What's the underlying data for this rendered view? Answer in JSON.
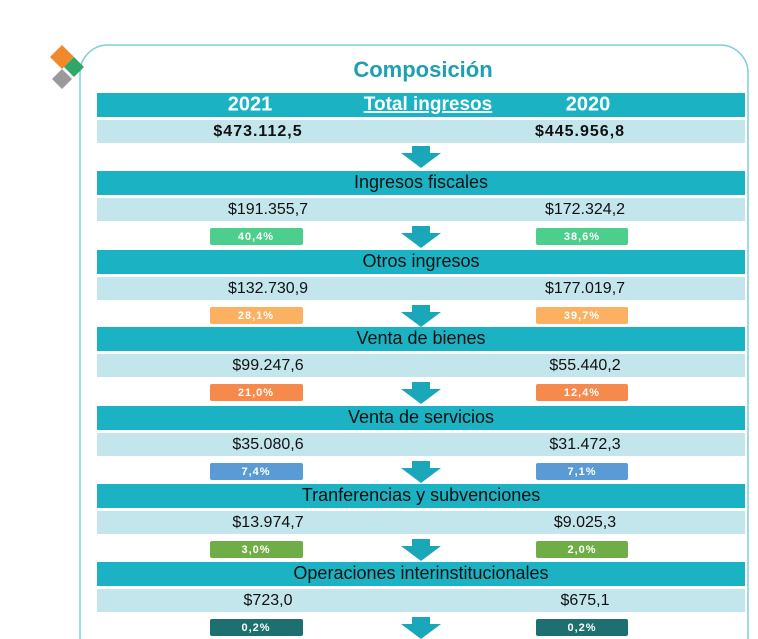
{
  "title": "Composición",
  "header": {
    "year_left": "2021",
    "label": "Total ingresos",
    "year_right": "2020",
    "total_left": "$473.112,5",
    "total_right": "$445.956,8"
  },
  "sections": [
    {
      "name": "Ingresos fiscales",
      "left": "$191.355,7",
      "right": "$172.324,2",
      "left_share": "40,4%",
      "right_share": "38,6%",
      "color": "#4ccf8c"
    },
    {
      "name": "Otros  ingresos",
      "left": "$132.730,9",
      "right": "$177.019,7",
      "left_share": "28,1%",
      "right_share": "39,7%",
      "color": "#fbb062"
    },
    {
      "name": "Venta de bienes",
      "left": "$99.247,6",
      "right": "$55.440,2",
      "left_share": "21,0%",
      "right_share": "12,4%",
      "color": "#f68a4c"
    },
    {
      "name": "Venta de servicios",
      "left": "$35.080,6",
      "right": "$31.472,3",
      "left_share": "7,4%",
      "right_share": "7,1%",
      "color": "#5b9bd5"
    },
    {
      "name": "Tranferencias y subvenciones",
      "left": "$13.974,7",
      "right": "$9.025,3",
      "left_share": "3,0%",
      "right_share": "2,0%",
      "color": "#6fad46"
    },
    {
      "name": "Operaciones   interinstitucionales",
      "left": "$723,0",
      "right": "$675,1",
      "left_share": "0,2%",
      "right_share": "0,2%",
      "color": "#1e6f70"
    }
  ]
}
